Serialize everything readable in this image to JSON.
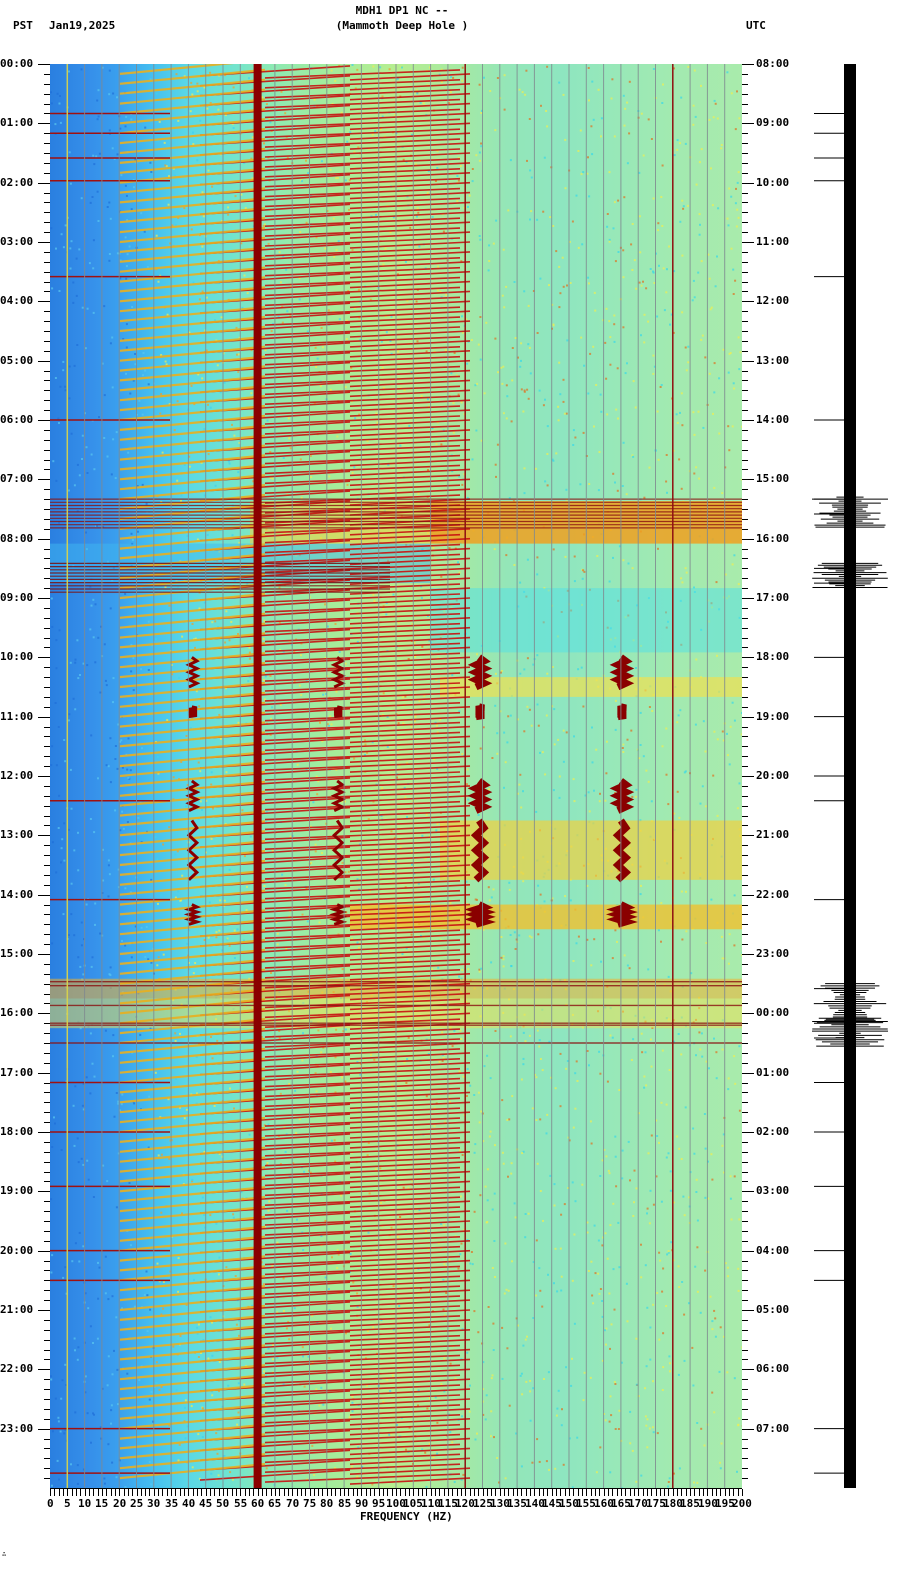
{
  "header": {
    "station_line": "MDH1 DP1 NC --",
    "station_name": "(Mammoth Deep Hole )",
    "left_timezone": "PST",
    "date": "Jan19,2025",
    "right_timezone": "UTC"
  },
  "footer": {
    "xaxis_title": "FREQUENCY (HZ)",
    "corner_mark": "∴"
  },
  "chart_data": {
    "type": "heatmap",
    "title": "MDH1 DP1 NC -- (Mammoth Deep Hole )",
    "subtitle": "PST Jan19,2025",
    "xlabel": "FREQUENCY (HZ)",
    "ylabel_left": "PST",
    "ylabel_right": "UTC",
    "xlim": [
      0,
      200
    ],
    "ylim_hours": [
      0,
      24
    ],
    "x_ticks": [
      "0",
      "5",
      "10",
      "15",
      "20",
      "25",
      "30",
      "35",
      "40",
      "45",
      "50",
      "55",
      "60",
      "65",
      "70",
      "75",
      "80",
      "85",
      "90",
      "95",
      "100",
      "105",
      "110",
      "115",
      "120",
      "125",
      "130",
      "135",
      "140",
      "145",
      "150",
      "155",
      "160",
      "165",
      "170",
      "175",
      "180",
      "185",
      "190",
      "195",
      "200"
    ],
    "y_ticks_left": [
      "00:00",
      "01:00",
      "02:00",
      "03:00",
      "04:00",
      "05:00",
      "06:00",
      "07:00",
      "08:00",
      "09:00",
      "10:00",
      "11:00",
      "12:00",
      "13:00",
      "14:00",
      "15:00",
      "16:00",
      "17:00",
      "18:00",
      "19:00",
      "20:00",
      "21:00",
      "22:00",
      "23:00"
    ],
    "y_ticks_right": [
      "08:00",
      "09:00",
      "10:00",
      "11:00",
      "12:00",
      "13:00",
      "14:00",
      "15:00",
      "16:00",
      "17:00",
      "18:00",
      "19:00",
      "20:00",
      "21:00",
      "22:00",
      "23:00",
      "00:00",
      "01:00",
      "02:00",
      "03:00",
      "04:00",
      "05:00",
      "06:00",
      "07:00"
    ],
    "colormap": "jet (blue=low, cyan, green, yellow, red, dark red=high)",
    "colors": {
      "low": "#2a7fe0",
      "mid": "#8ceab4",
      "high_yellow": "#f0e040",
      "high_red": "#d01010",
      "max": "#800000"
    },
    "persistent_lines_hz": [
      60,
      120,
      180
    ],
    "strong_line_hz": 60,
    "grid": true,
    "features": [
      {
        "type": "harmonic_sweeps",
        "description": "Rising diagonal tonal lines every ~10 min, 20–120 Hz, throughout day"
      },
      {
        "type": "broadband_event",
        "pst_start": "07:20",
        "pst_end": "08:45",
        "description": "Broadband noise / multiple horizontal bursts, high energy 115–200 Hz"
      },
      {
        "type": "tonal_events",
        "pst_start": "09:55",
        "pst_end": "15:00",
        "freqs_hz": [
          41,
          83,
          124,
          165
        ],
        "description": "Recurring wavy tonal features at harmonic frequencies"
      },
      {
        "type": "broadband_event",
        "pst_start": "15:25",
        "pst_end": "16:30",
        "description": "Strong broadband event with horizontal bursts"
      }
    ],
    "seismogram_events_pst": [
      "00:50",
      "01:10",
      "01:35",
      "01:58",
      "03:35",
      "06:00",
      "07:20",
      "07:35",
      "08:30",
      "08:45",
      "10:00",
      "11:00",
      "12:00",
      "12:25",
      "14:05",
      "15:35",
      "16:10",
      "16:25",
      "17:10",
      "18:00",
      "18:55",
      "20:00",
      "20:30",
      "23:00",
      "23:45"
    ]
  }
}
